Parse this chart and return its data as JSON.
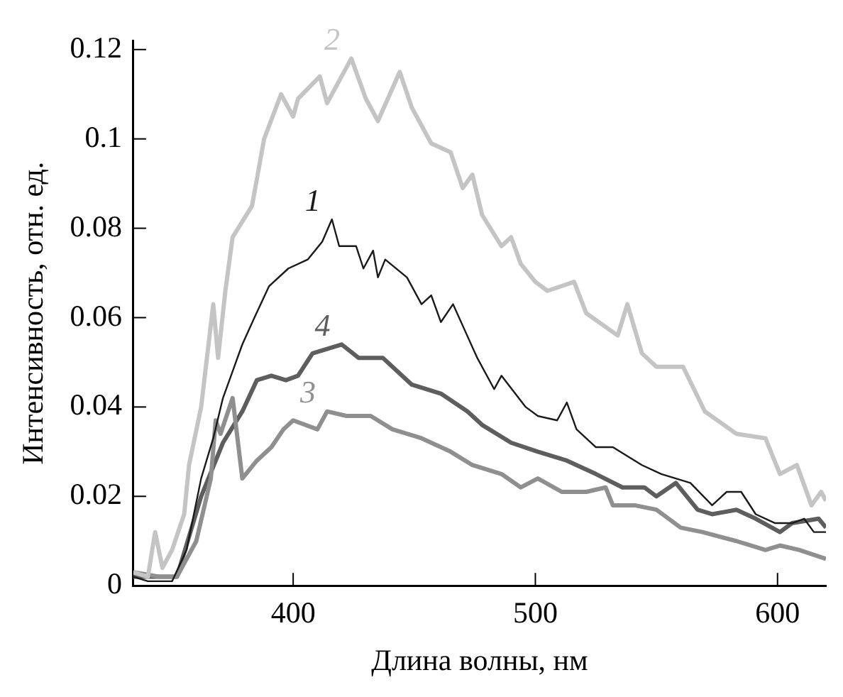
{
  "chart_data": {
    "type": "line",
    "xlabel": "Длина волны, нм",
    "ylabel": "Интенсивность, отн. ед.",
    "xlim": [
      334,
      620
    ],
    "ylim": [
      0,
      0.122
    ],
    "xticks": [
      400,
      500,
      600
    ],
    "yticks": [
      0,
      0.02,
      0.04,
      0.06,
      0.08,
      0.1,
      0.12
    ],
    "grid": false,
    "legend": false,
    "marker": "none",
    "line_style": "solid",
    "series": [
      {
        "name": "1",
        "color": "#1a1a1a",
        "x": [
          334,
          340,
          350,
          356,
          362,
          367,
          371,
          375,
          379,
          384,
          390,
          398,
          406,
          412,
          416,
          419,
          426,
          429,
          433,
          435,
          438,
          447,
          453,
          457,
          461,
          466,
          471,
          476,
          483,
          486,
          496,
          501,
          509,
          513,
          517,
          525,
          532,
          544,
          552,
          564,
          573,
          579,
          585,
          591,
          599,
          606,
          611,
          615,
          620
        ],
        "values": [
          0.002,
          0.001,
          0.001,
          0.008,
          0.024,
          0.033,
          0.042,
          0.048,
          0.054,
          0.06,
          0.067,
          0.071,
          0.073,
          0.077,
          0.082,
          0.076,
          0.076,
          0.071,
          0.075,
          0.069,
          0.073,
          0.069,
          0.063,
          0.065,
          0.059,
          0.063,
          0.057,
          0.051,
          0.044,
          0.047,
          0.04,
          0.038,
          0.037,
          0.041,
          0.035,
          0.031,
          0.031,
          0.027,
          0.025,
          0.023,
          0.018,
          0.021,
          0.021,
          0.016,
          0.014,
          0.014,
          0.015,
          0.012,
          0.012
        ]
      },
      {
        "name": "2",
        "color": "#c4c4c4",
        "x": [
          334,
          340,
          343,
          346,
          350,
          355,
          357,
          362,
          367,
          369,
          372,
          375,
          383,
          388,
          395,
          400,
          402,
          411,
          414,
          424,
          430,
          435,
          444,
          449,
          457,
          465,
          470,
          474,
          478,
          486,
          490,
          494,
          500,
          505,
          516,
          521,
          534,
          538,
          544,
          550,
          561,
          570,
          583,
          595,
          601,
          608,
          614,
          618,
          620
        ],
        "values": [
          0.003,
          0.002,
          0.012,
          0.004,
          0.008,
          0.016,
          0.027,
          0.04,
          0.063,
          0.051,
          0.066,
          0.078,
          0.085,
          0.1,
          0.11,
          0.105,
          0.109,
          0.114,
          0.108,
          0.118,
          0.109,
          0.104,
          0.115,
          0.107,
          0.099,
          0.097,
          0.089,
          0.092,
          0.083,
          0.076,
          0.078,
          0.072,
          0.068,
          0.066,
          0.068,
          0.061,
          0.056,
          0.063,
          0.052,
          0.049,
          0.049,
          0.039,
          0.034,
          0.033,
          0.025,
          0.027,
          0.018,
          0.021,
          0.019
        ]
      },
      {
        "name": "3",
        "color": "#8f8f8f",
        "x": [
          334,
          345,
          352,
          360,
          366,
          368,
          370,
          375,
          379,
          385,
          391,
          396,
          400,
          410,
          414,
          422,
          432,
          441,
          453,
          465,
          474,
          486,
          494,
          501,
          511,
          521,
          529,
          532,
          541,
          550,
          560,
          569,
          583,
          595,
          601,
          609,
          620
        ],
        "values": [
          0.003,
          0.002,
          0.002,
          0.01,
          0.024,
          0.037,
          0.034,
          0.042,
          0.024,
          0.028,
          0.031,
          0.035,
          0.037,
          0.035,
          0.039,
          0.038,
          0.038,
          0.035,
          0.033,
          0.03,
          0.027,
          0.025,
          0.022,
          0.024,
          0.021,
          0.021,
          0.022,
          0.018,
          0.018,
          0.017,
          0.013,
          0.012,
          0.01,
          0.008,
          0.009,
          0.008,
          0.006
        ]
      },
      {
        "name": "4",
        "color": "#5e5e5e",
        "x": [
          334,
          345,
          352,
          362,
          371,
          379,
          385,
          391,
          397,
          402,
          408,
          420,
          427,
          437,
          449,
          461,
          472,
          478,
          490,
          501,
          513,
          525,
          536,
          545,
          550,
          558,
          567,
          573,
          583,
          591,
          601,
          606,
          617,
          620
        ],
        "values": [
          0.002,
          0.002,
          0.002,
          0.02,
          0.032,
          0.039,
          0.046,
          0.047,
          0.046,
          0.047,
          0.052,
          0.054,
          0.051,
          0.051,
          0.045,
          0.043,
          0.039,
          0.036,
          0.032,
          0.03,
          0.028,
          0.025,
          0.022,
          0.022,
          0.02,
          0.023,
          0.017,
          0.016,
          0.017,
          0.015,
          0.012,
          0.014,
          0.015,
          0.013
        ]
      }
    ]
  }
}
